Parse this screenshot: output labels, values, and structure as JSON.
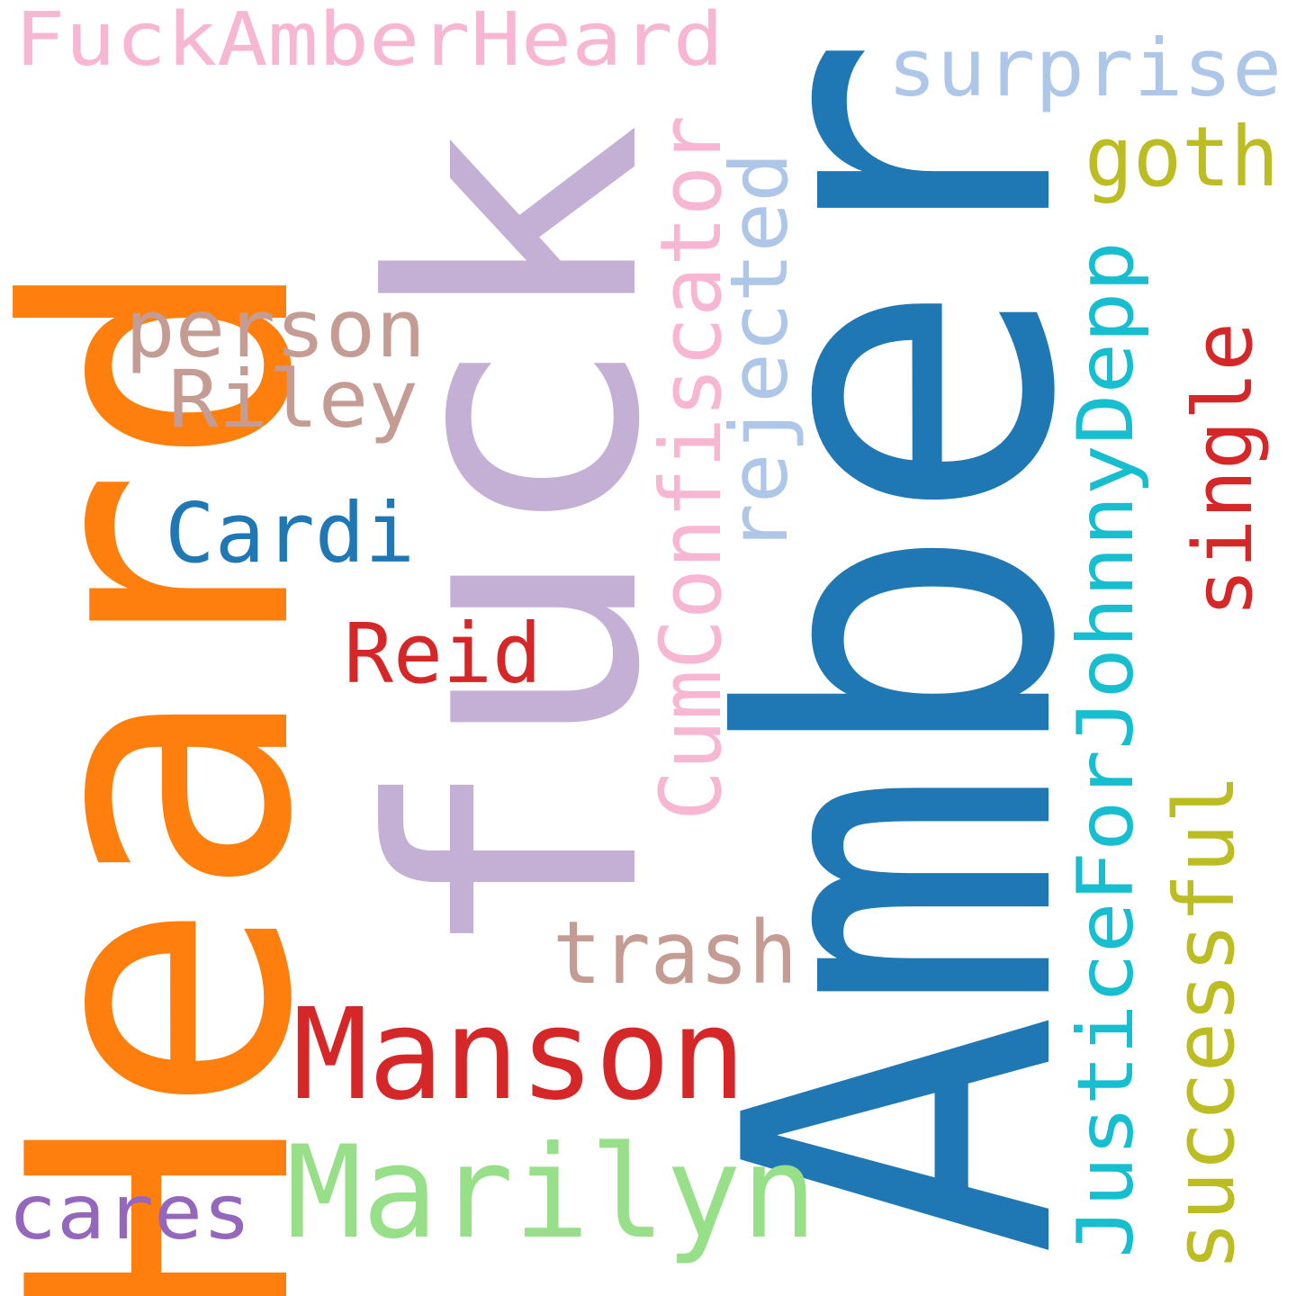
{
  "word_cloud": {
    "words": [
      {
        "id": "fuckamberheard",
        "text": "FuckAmberHeard",
        "color": "#f7b6d2"
      },
      {
        "id": "amber",
        "text": "Amber",
        "color": "#1f77b4"
      },
      {
        "id": "heard",
        "text": "Heard",
        "color": "#ff7f0e"
      },
      {
        "id": "fuck",
        "text": "fuck",
        "color": "#c5b0d5"
      },
      {
        "id": "surprise",
        "text": "surprise",
        "color": "#aec7e8"
      },
      {
        "id": "goth",
        "text": "goth",
        "color": "#bcbd22"
      },
      {
        "id": "person",
        "text": "person",
        "color": "#c49c94"
      },
      {
        "id": "riley",
        "text": "Riley",
        "color": "#c49c94"
      },
      {
        "id": "cardi",
        "text": "Cardi",
        "color": "#1f77b4"
      },
      {
        "id": "reid",
        "text": "Reid",
        "color": "#d62728"
      },
      {
        "id": "trash",
        "text": "trash",
        "color": "#c49c94"
      },
      {
        "id": "manson",
        "text": "Manson",
        "color": "#d62728"
      },
      {
        "id": "marilyn",
        "text": "Marilyn",
        "color": "#98df8a"
      },
      {
        "id": "cares",
        "text": "cares",
        "color": "#9467bd"
      },
      {
        "id": "cumconfiscator",
        "text": "CumConfiscator",
        "color": "#f7b6d2"
      },
      {
        "id": "rejected",
        "text": "rejected",
        "color": "#aec7e8"
      },
      {
        "id": "justiceforjohnnydepp",
        "text": "JusticeForJohnnyDepp",
        "color": "#17becf"
      },
      {
        "id": "single",
        "text": "single",
        "color": "#d62728"
      },
      {
        "id": "successful",
        "text": "successful",
        "color": "#bcbd22"
      }
    ]
  }
}
